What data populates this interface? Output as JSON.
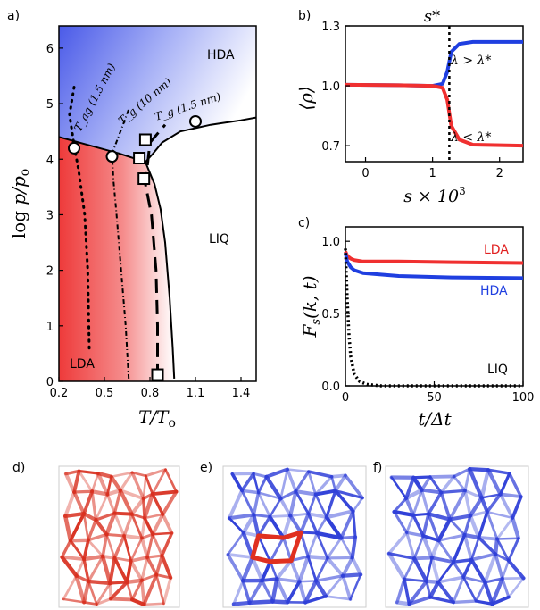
{
  "panel_labels": [
    "a)",
    "b)",
    "c)",
    "d)",
    "e)",
    "f)"
  ],
  "chart_data": [
    {
      "type": "line",
      "panel": "a)",
      "xlabel": "T/T_o",
      "ylabel": "log p/p_o",
      "xlim": [
        0.2,
        1.5
      ],
      "ylim": [
        0,
        6.4
      ],
      "xticks": [
        "0.2",
        "0.5",
        "0.8",
        "1.1",
        "1.4"
      ],
      "yticks": [
        "0",
        "1",
        "2",
        "3",
        "4",
        "5",
        "6"
      ],
      "region_labels": [
        "HDA",
        "LIQ",
        "LDA"
      ],
      "colors": {
        "hda": "#3040e0",
        "lda": "#e83030",
        "line": "#000000"
      },
      "series": [
        {
          "name": "T_ag (1.5 nm)",
          "style": "dotted",
          "x": [
            0.4,
            0.39,
            0.37,
            0.33,
            0.3,
            0.27,
            0.3
          ],
          "y": [
            0.6,
            2.0,
            3.0,
            3.8,
            4.25,
            4.8,
            5.3
          ]
        },
        {
          "name": "T_g (10 nm)",
          "style": "dash-dot",
          "x": [
            0.66,
            0.64,
            0.61,
            0.58,
            0.56,
            0.55,
            0.62,
            0.66
          ],
          "y": [
            0.05,
            1.0,
            2.0,
            3.0,
            3.6,
            4.1,
            4.6,
            4.9
          ]
        },
        {
          "name": "T_g (1.5 nm)",
          "style": "dashed",
          "x": [
            0.85,
            0.85,
            0.84,
            0.81,
            0.77,
            0.8,
            0.9
          ],
          "y": [
            0.05,
            1.0,
            2.0,
            3.0,
            3.55,
            4.3,
            4.62
          ]
        },
        {
          "name": "",
          "style": "solid",
          "x": [
            0.2,
            0.4,
            0.6,
            0.77,
            0.82,
            0.88,
            1.0,
            1.2,
            1.4,
            1.5
          ],
          "y": [
            4.4,
            4.25,
            4.1,
            3.95,
            4.1,
            4.3,
            4.5,
            4.62,
            4.7,
            4.75
          ]
        },
        {
          "name": "",
          "style": "solid",
          "x": [
            0.77,
            0.83,
            0.87,
            0.9,
            0.93,
            0.95,
            0.96
          ],
          "y": [
            3.95,
            3.55,
            3.1,
            2.5,
            1.5,
            0.6,
            0.05
          ]
        }
      ],
      "circles": [
        {
          "x": 0.3,
          "y": 4.2
        },
        {
          "x": 0.55,
          "y": 4.05
        },
        {
          "x": 1.1,
          "y": 4.68
        }
      ],
      "squares": [
        {
          "x": 0.77,
          "y": 4.35
        },
        {
          "x": 0.73,
          "y": 4.02
        },
        {
          "x": 0.76,
          "y": 3.65
        },
        {
          "x": 0.85,
          "y": 0.12
        }
      ]
    },
    {
      "type": "line",
      "panel": "b)",
      "xlabel": "s × 10^3",
      "ylabel": "⟨ρ⟩",
      "xlim": [
        -0.3,
        2.35
      ],
      "ylim": [
        0.62,
        1.3
      ],
      "xticks": [
        "0",
        "1",
        "2"
      ],
      "yticks": [
        "0.7",
        "1.0",
        "1.3"
      ],
      "vline": {
        "x": 1.25,
        "label": "s*"
      },
      "series": [
        {
          "name": "λ > λ*",
          "color": "#1f3fe0",
          "x": [
            -0.3,
            0.5,
            1.0,
            1.15,
            1.22,
            1.28,
            1.4,
            1.6,
            2.35
          ],
          "y": [
            1.005,
            1.003,
            1.0,
            1.01,
            1.07,
            1.17,
            1.21,
            1.22,
            1.22
          ]
        },
        {
          "name": "λ < λ*",
          "color": "#f03030",
          "x": [
            -0.3,
            0.5,
            1.0,
            1.15,
            1.22,
            1.28,
            1.4,
            1.6,
            2.35
          ],
          "y": [
            1.005,
            1.003,
            1.0,
            0.99,
            0.93,
            0.8,
            0.73,
            0.705,
            0.7
          ]
        }
      ]
    },
    {
      "type": "line",
      "panel": "c)",
      "xlabel": "t/Δt",
      "ylabel": "F_s(k,t)",
      "xlim": [
        0,
        100
      ],
      "ylim": [
        0,
        1.1
      ],
      "xticks": [
        "0",
        "50",
        "100"
      ],
      "yticks": [
        "0.0",
        "0.5",
        "1.0"
      ],
      "series": [
        {
          "name": "LDA",
          "color": "#f03030",
          "x": [
            0,
            1,
            3,
            5,
            10,
            30,
            60,
            100
          ],
          "y": [
            0.93,
            0.9,
            0.88,
            0.87,
            0.86,
            0.86,
            0.855,
            0.85
          ]
        },
        {
          "name": "HDA",
          "color": "#1f3fe0",
          "x": [
            0,
            1,
            3,
            5,
            10,
            30,
            60,
            100
          ],
          "y": [
            0.92,
            0.86,
            0.82,
            0.8,
            0.78,
            0.76,
            0.75,
            0.745
          ]
        },
        {
          "name": "LIQ",
          "color": "#000000",
          "style": "dotted",
          "x": [
            0,
            1,
            2,
            3,
            5,
            8,
            12,
            20,
            100
          ],
          "y": [
            0.95,
            0.6,
            0.35,
            0.2,
            0.08,
            0.03,
            0.01,
            0.0,
            0.0
          ]
        }
      ]
    }
  ],
  "annotations": {
    "hda": "HDA",
    "liq": "LIQ",
    "lda": "LDA",
    "tag": "T_ag (1.5 nm)",
    "tg10": "T_g (10 nm)",
    "tg15": "T_g (1.5 nm)",
    "b_up": "λ > λ*",
    "b_down": "λ < λ*",
    "s_star": "s*",
    "c_lda": "LDA",
    "c_hda": "HDA",
    "c_liq": "LIQ"
  },
  "snapshots": [
    {
      "panel": "d)",
      "name": "lda-snapshot",
      "color": "#d83020"
    },
    {
      "panel": "e)",
      "name": "mixed-snapshot",
      "color": "#3040d8"
    },
    {
      "panel": "f)",
      "name": "hda-snapshot",
      "color": "#3040d8"
    }
  ]
}
